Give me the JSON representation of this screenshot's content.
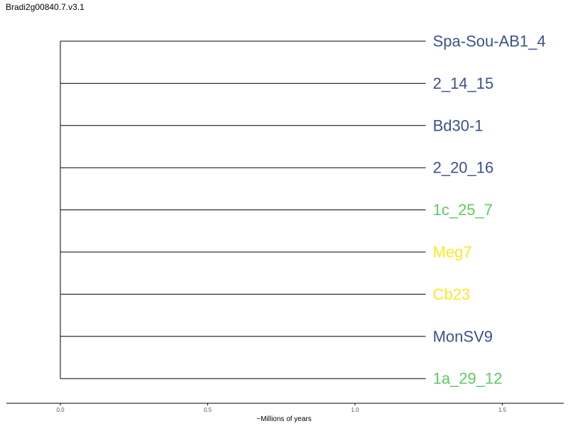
{
  "title": "Bradi2g00840.7.v3.1",
  "chart_data": {
    "type": "dendrogram",
    "xlabel": "~Millions of years",
    "xlim": [
      0.0,
      1.71
    ],
    "ticks": [
      {
        "value": 0.0,
        "label": "0.0"
      },
      {
        "value": 0.5,
        "label": "0.5"
      },
      {
        "value": 1.0,
        "label": "1.0"
      },
      {
        "value": 1.5,
        "label": "1.5"
      }
    ],
    "root_x": 0.0,
    "leaves": [
      {
        "name": "Spa-Sou-AB1_4",
        "branch_length": 1.24,
        "color": "#3b528b"
      },
      {
        "name": "2_14_15",
        "branch_length": 1.24,
        "color": "#3b528b"
      },
      {
        "name": "Bd30-1",
        "branch_length": 1.24,
        "color": "#3b528b"
      },
      {
        "name": "2_20_16",
        "branch_length": 1.24,
        "color": "#3b528b"
      },
      {
        "name": "1c_25_7",
        "branch_length": 1.24,
        "color": "#5ec962"
      },
      {
        "name": "Meg7",
        "branch_length": 1.24,
        "color": "#fde725"
      },
      {
        "name": "Cb23",
        "branch_length": 1.24,
        "color": "#fde725"
      },
      {
        "name": "MonSV9",
        "branch_length": 1.24,
        "color": "#3b528b"
      },
      {
        "name": "1a_29_12",
        "branch_length": 1.24,
        "color": "#5ec962"
      }
    ],
    "line_color": "#000000",
    "axis_color": "#000000",
    "tick_label_color": "#555555"
  }
}
